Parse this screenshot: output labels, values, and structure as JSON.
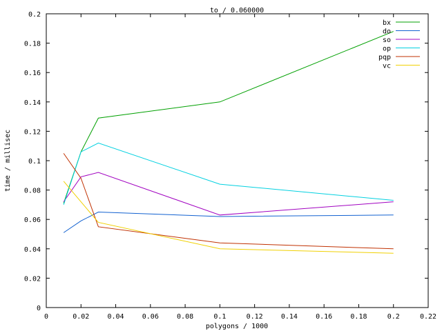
{
  "chart_data": {
    "type": "line",
    "title": "to / 0.060000",
    "xlabel": "polygons / 1000",
    "ylabel": "time / millisec",
    "xlim": [
      0,
      0.22
    ],
    "ylim": [
      0,
      0.2
    ],
    "x_ticks": [
      "0",
      "0.02",
      "0.04",
      "0.06",
      "0.08",
      "0.1",
      "0.12",
      "0.14",
      "0.16",
      "0.18",
      "0.2",
      "0.22"
    ],
    "y_ticks": [
      "0",
      "0.02",
      "0.04",
      "0.06",
      "0.08",
      "0.1",
      "0.12",
      "0.14",
      "0.16",
      "0.18",
      "0.2"
    ],
    "grid": false,
    "legend_position": "top-right",
    "x": [
      0.01,
      0.02,
      0.03,
      0.1,
      0.2
    ],
    "series": [
      {
        "name": "bx",
        "color": "#00a000",
        "values": [
          0.071,
          0.106,
          0.129,
          0.14,
          0.188
        ]
      },
      {
        "name": "do",
        "color": "#1060d0",
        "values": [
          0.051,
          0.059,
          0.065,
          0.062,
          0.063
        ]
      },
      {
        "name": "so",
        "color": "#a000c0",
        "values": [
          0.072,
          0.089,
          0.092,
          0.063,
          0.072
        ]
      },
      {
        "name": "op",
        "color": "#00d0e0",
        "values": [
          0.07,
          0.106,
          0.112,
          0.084,
          0.073
        ]
      },
      {
        "name": "pqp",
        "color": "#c03000",
        "values": [
          0.105,
          0.088,
          0.055,
          0.044,
          0.04
        ]
      },
      {
        "name": "vc",
        "color": "#f0d000",
        "values": [
          0.086,
          0.072,
          0.058,
          0.04,
          0.037
        ]
      }
    ]
  }
}
